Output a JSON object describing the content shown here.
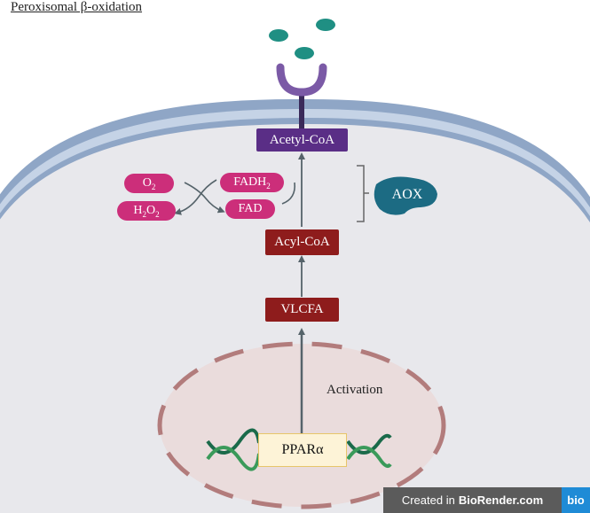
{
  "title": "Peroxisomal β-oxidation",
  "labels": {
    "acetyl_coa": "Acetyl-CoA",
    "o2_base": "O",
    "o2_sub": "2",
    "fadh2_base": "FADH",
    "fadh2_sub": "2",
    "h2o2_h": "H",
    "h2o2_sub1": "2",
    "h2o2_o": "O",
    "h2o2_sub2": "2",
    "fad": "FAD",
    "aox": "AOX",
    "acyl_coa": "Acyl-CoA",
    "vlcfa": "VLCFA",
    "activation": "Activation",
    "ppar": "PPARα"
  },
  "credit": {
    "prefix": "Created in",
    "brand": "BioRender.com",
    "logo": "bio"
  },
  "colors": {
    "cytoplasm": "#e8e8ec",
    "membrane_outer": "#8fa6c6",
    "membrane_inner": "#c5d3e6",
    "nucleus_fill": "#eadcdc",
    "nucleus_border": "#b27c7c",
    "pill": "#cc2e7a",
    "red_box": "#8e1c1c",
    "purple_box": "#5a2e86",
    "aox": "#1c6b83",
    "teal_molecule": "#1f8f83",
    "dna_strand_a": "#1a6a4a",
    "dna_strand_b": "#3a9a5a",
    "arrow": "#55636a"
  },
  "icons": {
    "receptor": "receptor-icon",
    "molecules": "molecule-icon",
    "dna": "dna-helix-icon",
    "aox_blob": "enzyme-blob-icon"
  }
}
